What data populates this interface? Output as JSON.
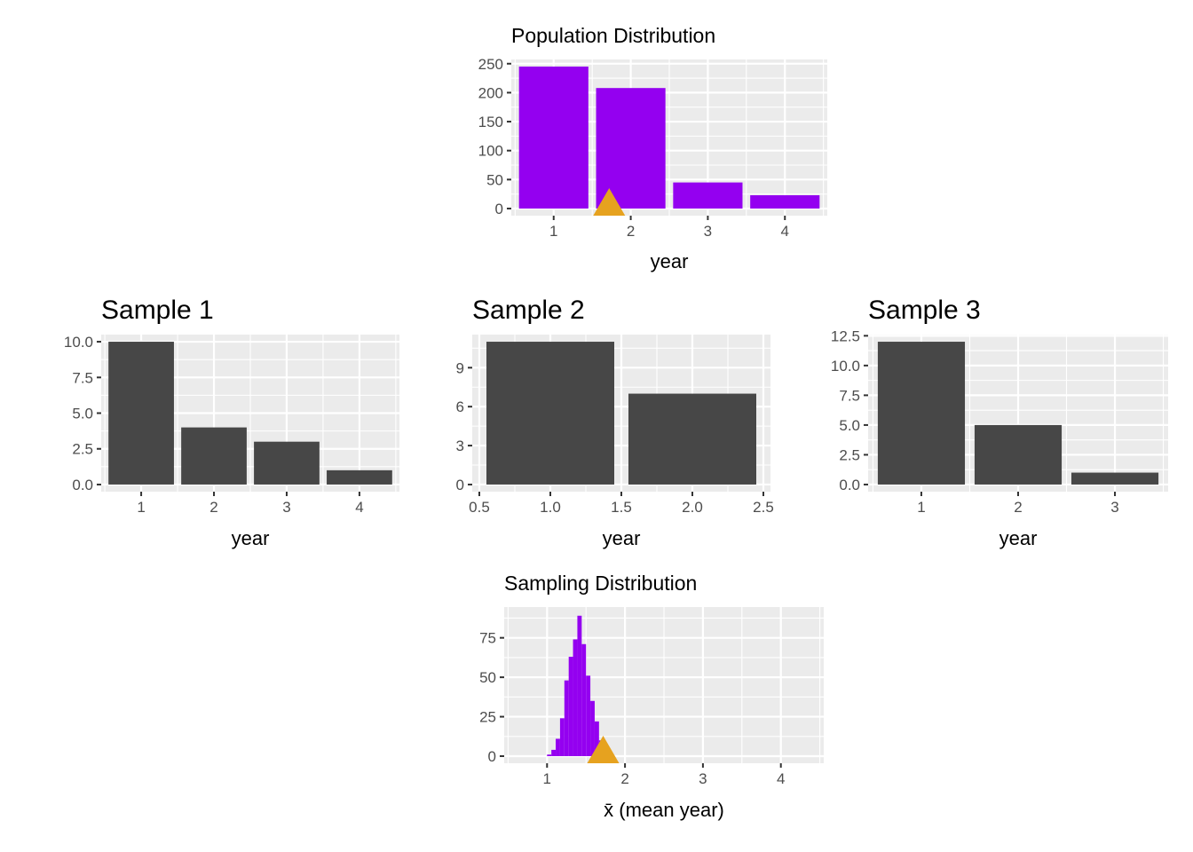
{
  "chart_data": [
    {
      "id": "population",
      "type": "bar",
      "title": "Population Distribution",
      "xlabel": "year",
      "ylabel": "",
      "x": [
        1,
        2,
        3,
        4
      ],
      "values": [
        245,
        208,
        45,
        23
      ],
      "xlim": [
        0.45,
        4.55
      ],
      "ylim": [
        -12.3,
        257.3
      ],
      "xticks": [
        1,
        2,
        3,
        4
      ],
      "xtick_labels": [
        "1",
        "2",
        "3",
        "4"
      ],
      "yticks": [
        0,
        50,
        100,
        150,
        200,
        250
      ],
      "ytick_labels": [
        "0",
        "50",
        "100",
        "150",
        "200",
        "250"
      ],
      "bar_width": 0.9,
      "bar_color": "#9400f0",
      "marker": {
        "shape": "triangle",
        "x": 1.72,
        "color": "#e6a21f"
      },
      "grid": true,
      "legend": "none"
    },
    {
      "id": "sample1",
      "type": "bar",
      "title": "Sample 1",
      "xlabel": "year",
      "ylabel": "",
      "x": [
        1,
        2,
        3,
        4
      ],
      "values": [
        10,
        4,
        3,
        1
      ],
      "xlim": [
        0.45,
        4.55
      ],
      "ylim": [
        -0.5,
        10.5
      ],
      "xticks": [
        1,
        2,
        3,
        4
      ],
      "xtick_labels": [
        "1",
        "2",
        "3",
        "4"
      ],
      "yticks": [
        0,
        2.5,
        5,
        7.5,
        10
      ],
      "ytick_labels": [
        "0.0",
        "2.5",
        "5.0",
        "7.5",
        "10.0"
      ],
      "bar_width": 0.9,
      "bar_color": "#474747",
      "grid": true,
      "legend": "none"
    },
    {
      "id": "sample2",
      "type": "bar",
      "title": "Sample 2",
      "xlabel": "year",
      "ylabel": "",
      "x": [
        1,
        2
      ],
      "values": [
        11,
        7
      ],
      "xlim": [
        0.45,
        2.55
      ],
      "ylim": [
        -0.55,
        11.55
      ],
      "xticks": [
        0.5,
        1.0,
        1.5,
        2.0,
        2.5
      ],
      "xtick_labels": [
        "0.5",
        "1.0",
        "1.5",
        "2.0",
        "2.5"
      ],
      "yticks": [
        0,
        3,
        6,
        9
      ],
      "ytick_labels": [
        "0",
        "3",
        "6",
        "9"
      ],
      "bar_width": 0.9,
      "bar_color": "#474747",
      "grid": true,
      "legend": "none"
    },
    {
      "id": "sample3",
      "type": "bar",
      "title": "Sample 3",
      "xlabel": "year",
      "ylabel": "",
      "x": [
        1,
        2,
        3
      ],
      "values": [
        12,
        5,
        1
      ],
      "xlim": [
        0.45,
        3.55
      ],
      "ylim": [
        -0.6,
        12.6
      ],
      "xticks": [
        1,
        2,
        3
      ],
      "xtick_labels": [
        "1",
        "2",
        "3"
      ],
      "yticks": [
        0,
        2.5,
        5,
        7.5,
        10,
        12.5
      ],
      "ytick_labels": [
        "0.0",
        "2.5",
        "5.0",
        "7.5",
        "10.0",
        "12.5"
      ],
      "bar_width": 0.9,
      "bar_color": "#474747",
      "grid": true,
      "legend": "none"
    },
    {
      "id": "sampling",
      "type": "bar",
      "title": "Sampling Distribution",
      "xlabel": "x̄ (mean year)",
      "ylabel": "",
      "x": [
        1.0278,
        1.0833,
        1.1389,
        1.1944,
        1.25,
        1.3056,
        1.3611,
        1.4167,
        1.4722,
        1.5278,
        1.5833,
        1.6389,
        1.6944,
        1.75,
        1.8056
      ],
      "values": [
        1,
        4,
        11,
        24,
        48,
        63,
        74,
        89,
        71,
        51,
        35,
        22,
        10,
        3,
        1
      ],
      "xlim": [
        0.45,
        4.55
      ],
      "ylim": [
        -4.5,
        94.5
      ],
      "xticks": [
        1,
        2,
        3,
        4
      ],
      "xtick_labels": [
        "1",
        "2",
        "3",
        "4"
      ],
      "yticks": [
        0,
        25,
        50,
        75
      ],
      "ytick_labels": [
        "0",
        "25",
        "50",
        "75"
      ],
      "bar_width": 0.0556,
      "bar_color": "#9400f0",
      "marker": {
        "shape": "triangle",
        "x": 1.72,
        "color": "#e6a21f"
      },
      "grid": true,
      "legend": "none"
    }
  ]
}
